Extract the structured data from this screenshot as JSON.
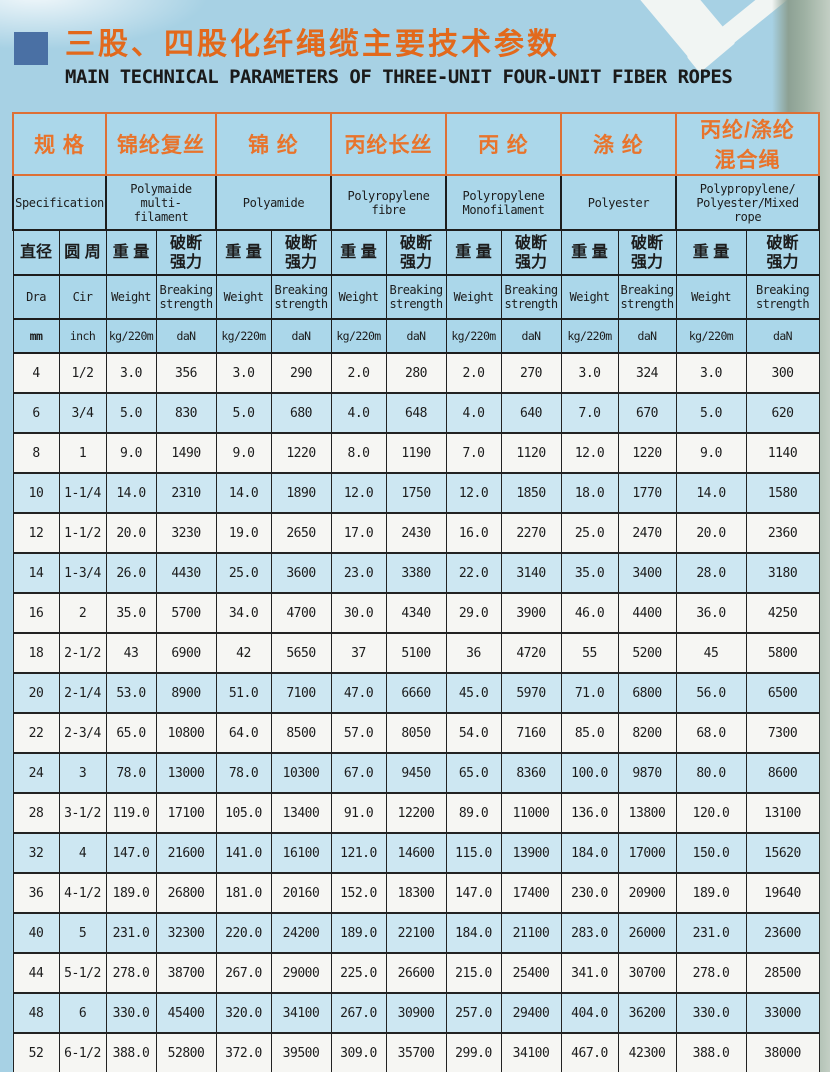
{
  "page": {
    "title_zh": "三股、四股化纤绳缆主要技术参数",
    "title_en": "MAIN TECHNICAL PARAMETERS OF THREE-UNIT FOUR-UNIT FIBER ROPES"
  },
  "colors": {
    "page_background": "#a7d1e4",
    "title_orange": "#e2691c",
    "bullet_blue": "#4a70a4",
    "header_border_orange": "#dd7036",
    "header_background": "#abd7ea",
    "row_white": "#f6f6f3",
    "row_blue": "#cde7f2",
    "edge_strip_green": "#8da194",
    "border_dark": "#1d1d1d"
  },
  "table": {
    "spec_group": {
      "zh": "规 格",
      "en": "Specification"
    },
    "materials": [
      {
        "zh": "锦纶复丝",
        "en": "Polymaide multi-\nfilament"
      },
      {
        "zh": "锦 纶",
        "en": "Polyamide"
      },
      {
        "zh": "丙纶长丝",
        "en": "Polyropylene\nfibre"
      },
      {
        "zh": "丙 纶",
        "en": "Polyropylene\nMonofilament"
      },
      {
        "zh": "涤 纶",
        "en": "Polyester"
      },
      {
        "zh": "丙纶/涤纶\n混合绳",
        "en": "Polypropylene/\nPolyester/Mixed\nrope"
      }
    ],
    "subheaders": {
      "dia_zh": "直径",
      "dia_en": "Dra",
      "dia_unit": "mm",
      "cir_zh": "圆 周",
      "cir_en": "Cir",
      "cir_unit": "inch",
      "weight_zh": "重 量",
      "weight_en": "Weight",
      "weight_unit": "kg/220m",
      "breaking_zh": "破断\n强力",
      "breaking_en": "Breaking\nstrength",
      "breaking_unit": "daN"
    },
    "rows": [
      {
        "dia": "4",
        "cir": "1/2",
        "shaded": false,
        "values": [
          "3.0",
          "356",
          "3.0",
          "290",
          "2.0",
          "280",
          "2.0",
          "270",
          "3.0",
          "324",
          "3.0",
          "300"
        ]
      },
      {
        "dia": "6",
        "cir": "3/4",
        "shaded": true,
        "values": [
          "5.0",
          "830",
          "5.0",
          "680",
          "4.0",
          "648",
          "4.0",
          "640",
          "7.0",
          "670",
          "5.0",
          "620"
        ]
      },
      {
        "dia": "8",
        "cir": "1",
        "shaded": false,
        "values": [
          "9.0",
          "1490",
          "9.0",
          "1220",
          "8.0",
          "1190",
          "7.0",
          "1120",
          "12.0",
          "1220",
          "9.0",
          "1140"
        ]
      },
      {
        "dia": "10",
        "cir": "1-1/4",
        "shaded": true,
        "values": [
          "14.0",
          "2310",
          "14.0",
          "1890",
          "12.0",
          "1750",
          "12.0",
          "1850",
          "18.0",
          "1770",
          "14.0",
          "1580"
        ]
      },
      {
        "dia": "12",
        "cir": "1-1/2",
        "shaded": false,
        "values": [
          "20.0",
          "3230",
          "19.0",
          "2650",
          "17.0",
          "2430",
          "16.0",
          "2270",
          "25.0",
          "2470",
          "20.0",
          "2360"
        ]
      },
      {
        "dia": "14",
        "cir": "1-3/4",
        "shaded": true,
        "values": [
          "26.0",
          "4430",
          "25.0",
          "3600",
          "23.0",
          "3380",
          "22.0",
          "3140",
          "35.0",
          "3400",
          "28.0",
          "3180"
        ]
      },
      {
        "dia": "16",
        "cir": "2",
        "shaded": false,
        "values": [
          "35.0",
          "5700",
          "34.0",
          "4700",
          "30.0",
          "4340",
          "29.0",
          "3900",
          "46.0",
          "4400",
          "36.0",
          "4250"
        ]
      },
      {
        "dia": "18",
        "cir": "2-1/2",
        "shaded": false,
        "values": [
          "43",
          "6900",
          "42",
          "5650",
          "37",
          "5100",
          "36",
          "4720",
          "55",
          "5200",
          "45",
          "5800"
        ]
      },
      {
        "dia": "20",
        "cir": "2-1/4",
        "shaded": true,
        "values": [
          "53.0",
          "8900",
          "51.0",
          "7100",
          "47.0",
          "6660",
          "45.0",
          "5970",
          "71.0",
          "6800",
          "56.0",
          "6500"
        ]
      },
      {
        "dia": "22",
        "cir": "2-3/4",
        "shaded": false,
        "values": [
          "65.0",
          "10800",
          "64.0",
          "8500",
          "57.0",
          "8050",
          "54.0",
          "7160",
          "85.0",
          "8200",
          "68.0",
          "7300"
        ]
      },
      {
        "dia": "24",
        "cir": "3",
        "shaded": true,
        "values": [
          "78.0",
          "13000",
          "78.0",
          "10300",
          "67.0",
          "9450",
          "65.0",
          "8360",
          "100.0",
          "9870",
          "80.0",
          "8600"
        ]
      },
      {
        "dia": "28",
        "cir": "3-1/2",
        "shaded": false,
        "values": [
          "119.0",
          "17100",
          "105.0",
          "13400",
          "91.0",
          "12200",
          "89.0",
          "11000",
          "136.0",
          "13800",
          "120.0",
          "13100"
        ]
      },
      {
        "dia": "32",
        "cir": "4",
        "shaded": true,
        "values": [
          "147.0",
          "21600",
          "141.0",
          "16100",
          "121.0",
          "14600",
          "115.0",
          "13900",
          "184.0",
          "17000",
          "150.0",
          "15620"
        ]
      },
      {
        "dia": "36",
        "cir": "4-1/2",
        "shaded": false,
        "values": [
          "189.0",
          "26800",
          "181.0",
          "20160",
          "152.0",
          "18300",
          "147.0",
          "17400",
          "230.0",
          "20900",
          "189.0",
          "19640"
        ]
      },
      {
        "dia": "40",
        "cir": "5",
        "shaded": true,
        "values": [
          "231.0",
          "32300",
          "220.0",
          "24200",
          "189.0",
          "22100",
          "184.0",
          "21100",
          "283.0",
          "26000",
          "231.0",
          "23600"
        ]
      },
      {
        "dia": "44",
        "cir": "5-1/2",
        "shaded": false,
        "values": [
          "278.0",
          "38700",
          "267.0",
          "29000",
          "225.0",
          "26600",
          "215.0",
          "25400",
          "341.0",
          "30700",
          "278.0",
          "28500"
        ]
      },
      {
        "dia": "48",
        "cir": "6",
        "shaded": true,
        "values": [
          "330.0",
          "45400",
          "320.0",
          "34100",
          "267.0",
          "30900",
          "257.0",
          "29400",
          "404.0",
          "36200",
          "330.0",
          "33000"
        ]
      },
      {
        "dia": "52",
        "cir": "6-1/2",
        "shaded": false,
        "values": [
          "388.0",
          "52800",
          "372.0",
          "39500",
          "309.0",
          "35700",
          "299.0",
          "34100",
          "467.0",
          "42300",
          "388.0",
          "38000"
        ]
      }
    ]
  }
}
